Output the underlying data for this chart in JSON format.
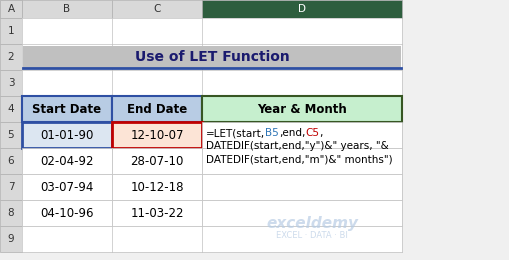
{
  "title": "Use of LET Function",
  "title_bg": "#c0c0c0",
  "title_color": "#1a1a6e",
  "col_headers": [
    "Start Date",
    "End Date",
    "Year & Month"
  ],
  "col_header_bg": [
    "#b8cce4",
    "#b8cce4",
    "#c6efce"
  ],
  "col_header_border": [
    "#2e4fa3",
    "#2e4fa3",
    "#375623"
  ],
  "rows": [
    [
      "01-01-90",
      "12-10-07"
    ],
    [
      "02-04-92",
      "28-07-10"
    ],
    [
      "03-07-94",
      "10-12-18"
    ],
    [
      "04-10-96",
      "11-03-22"
    ]
  ],
  "row5_start_bg": "#dce6f1",
  "row5_end_bg": "#fce4d6",
  "row5_start_border": "#2e4fa3",
  "row5_end_border": "#c00000",
  "formula_parts": [
    {
      "text": "=LET(start,",
      "color": "#000000"
    },
    {
      "text": "B5",
      "color": "#2e75b6"
    },
    {
      "text": ",end,",
      "color": "#000000"
    },
    {
      "text": "C5",
      "color": "#c00000"
    },
    {
      "text": ",",
      "color": "#000000"
    },
    {
      "text": "\nDATEDIF(start,end,\"y\")&\" years, \"&\nDATEDIF(start,end,\"m\")&\" months\")",
      "color": "#000000"
    }
  ],
  "watermark": "exceldemy",
  "watermark_sub": "EXCEL · DATA · BI",
  "col_letters": [
    "A",
    "B",
    "C",
    "D"
  ],
  "row_numbers": [
    "1",
    "2",
    "3",
    "4",
    "5",
    "6",
    "7",
    "8",
    "9"
  ],
  "bg_color": "#f0f0f0",
  "cell_bg": "#ffffff",
  "grid_color": "#000000",
  "header_row_bg": "#e8e8e8",
  "header_col_bg": "#e8e8e8"
}
